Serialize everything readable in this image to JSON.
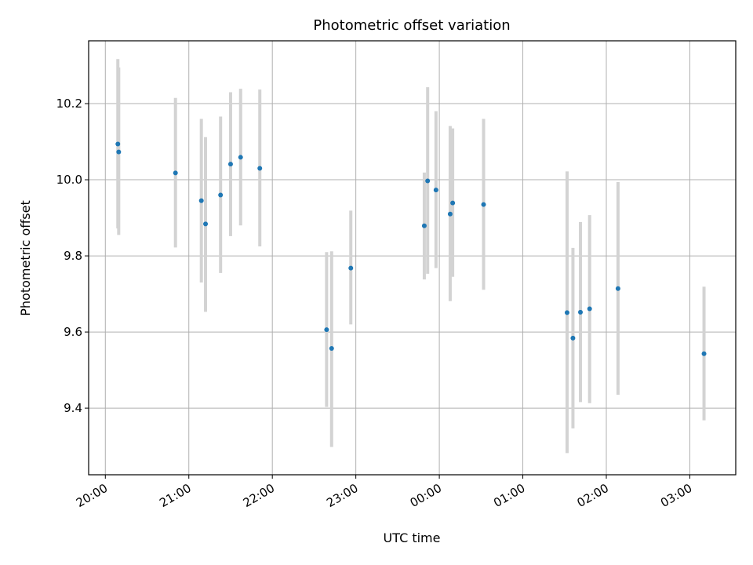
{
  "chart_data": {
    "type": "scatter",
    "title": "Photometric offset variation",
    "xlabel": "UTC time",
    "ylabel": "Photometric offset",
    "x_unit": "hours UTC (values >= 24 are after midnight)",
    "xlim": [
      19.8,
      27.55
    ],
    "ylim": [
      9.225,
      10.365
    ],
    "xticks": [
      20,
      21,
      22,
      23,
      24,
      25,
      26,
      27
    ],
    "xtick_labels": [
      "20:00",
      "21:00",
      "22:00",
      "23:00",
      "00:00",
      "01:00",
      "02:00",
      "03:00"
    ],
    "yticks": [
      9.4,
      9.6,
      9.8,
      10.0,
      10.2
    ],
    "ytick_labels": [
      "9.4",
      "9.6",
      "9.8",
      "10.0",
      "10.2"
    ],
    "grid": true,
    "marker_color": "#1f77b4",
    "errorbar_color": "#d3d3d3",
    "points": [
      {
        "x": 20.15,
        "y": 10.094,
        "yerr_low": 9.872,
        "yerr_high": 10.317
      },
      {
        "x": 20.16,
        "y": 10.073,
        "yerr_low": 9.855,
        "yerr_high": 10.295
      },
      {
        "x": 20.84,
        "y": 10.018,
        "yerr_low": 9.822,
        "yerr_high": 10.215
      },
      {
        "x": 21.15,
        "y": 9.945,
        "yerr_low": 9.73,
        "yerr_high": 10.16
      },
      {
        "x": 21.2,
        "y": 9.884,
        "yerr_low": 9.653,
        "yerr_high": 10.112
      },
      {
        "x": 21.38,
        "y": 9.96,
        "yerr_low": 9.755,
        "yerr_high": 10.166
      },
      {
        "x": 21.5,
        "y": 10.041,
        "yerr_low": 9.852,
        "yerr_high": 10.23
      },
      {
        "x": 21.62,
        "y": 10.059,
        "yerr_low": 9.88,
        "yerr_high": 10.239
      },
      {
        "x": 21.85,
        "y": 10.03,
        "yerr_low": 9.825,
        "yerr_high": 10.237
      },
      {
        "x": 22.65,
        "y": 9.606,
        "yerr_low": 9.403,
        "yerr_high": 9.81
      },
      {
        "x": 22.71,
        "y": 9.557,
        "yerr_low": 9.298,
        "yerr_high": 9.812
      },
      {
        "x": 22.94,
        "y": 9.768,
        "yerr_low": 9.62,
        "yerr_high": 9.919
      },
      {
        "x": 23.82,
        "y": 9.879,
        "yerr_low": 9.738,
        "yerr_high": 10.019
      },
      {
        "x": 23.86,
        "y": 9.997,
        "yerr_low": 9.753,
        "yerr_high": 10.243
      },
      {
        "x": 23.96,
        "y": 9.973,
        "yerr_low": 9.768,
        "yerr_high": 10.18
      },
      {
        "x": 24.13,
        "y": 9.91,
        "yerr_low": 9.681,
        "yerr_high": 10.141
      },
      {
        "x": 24.16,
        "y": 9.939,
        "yerr_low": 9.745,
        "yerr_high": 10.135
      },
      {
        "x": 24.53,
        "y": 9.935,
        "yerr_low": 9.711,
        "yerr_high": 10.16
      },
      {
        "x": 25.53,
        "y": 9.651,
        "yerr_low": 9.282,
        "yerr_high": 10.022
      },
      {
        "x": 25.6,
        "y": 9.584,
        "yerr_low": 9.347,
        "yerr_high": 9.821
      },
      {
        "x": 25.69,
        "y": 9.652,
        "yerr_low": 9.416,
        "yerr_high": 9.889
      },
      {
        "x": 25.8,
        "y": 9.661,
        "yerr_low": 9.413,
        "yerr_high": 9.907
      },
      {
        "x": 26.14,
        "y": 9.714,
        "yerr_low": 9.435,
        "yerr_high": 9.994
      },
      {
        "x": 27.17,
        "y": 9.543,
        "yerr_low": 9.368,
        "yerr_high": 9.719
      }
    ]
  }
}
